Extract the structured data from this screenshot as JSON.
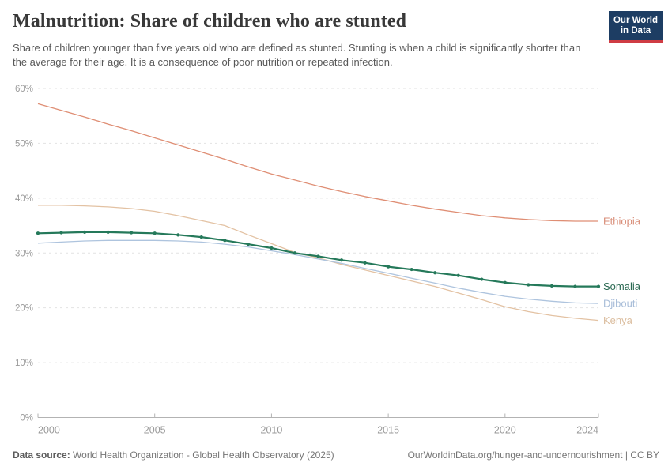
{
  "header": {
    "title": "Malnutrition: Share of children who are stunted",
    "subtitle": "Share of children younger than five years old who are defined as stunted. Stunting is when a child is significantly shorter than the average for their age. It is a consequence of poor nutrition or repeated infection.",
    "logo": {
      "line1": "Our World",
      "line2": "in Data",
      "bg": "#1d3d63",
      "accent": "#cf3c44"
    }
  },
  "chart_data": {
    "type": "line",
    "title": "Malnutrition: Share of children who are stunted",
    "xlabel": "",
    "ylabel": "",
    "ylim": [
      0,
      60
    ],
    "grid": "dashed horizontal",
    "legend_position": "right-end-labels",
    "y_ticks": [
      {
        "value": 0,
        "label": "0%"
      },
      {
        "value": 10,
        "label": "10%"
      },
      {
        "value": 20,
        "label": "20%"
      },
      {
        "value": 30,
        "label": "30%"
      },
      {
        "value": 40,
        "label": "40%"
      },
      {
        "value": 50,
        "label": "50%"
      },
      {
        "value": 60,
        "label": "60%"
      }
    ],
    "x_ticks": [
      2000,
      2005,
      2010,
      2015,
      2020,
      2024
    ],
    "x": [
      2000,
      2001,
      2002,
      2003,
      2004,
      2005,
      2006,
      2007,
      2008,
      2009,
      2010,
      2011,
      2012,
      2013,
      2014,
      2015,
      2016,
      2017,
      2018,
      2019,
      2020,
      2021,
      2022,
      2023,
      2024
    ],
    "series": [
      {
        "name": "Ethiopia",
        "color": "#df8e74",
        "label_color": "#d98e79",
        "markers": false,
        "values": [
          57.2,
          56.0,
          54.8,
          53.5,
          52.3,
          51.0,
          49.7,
          48.4,
          47.1,
          45.7,
          44.4,
          43.3,
          42.2,
          41.2,
          40.3,
          39.5,
          38.7,
          38.0,
          37.4,
          36.8,
          36.4,
          36.1,
          35.9,
          35.8,
          35.8
        ]
      },
      {
        "name": "Kenya",
        "color": "#e3c2a3",
        "label_color": "#dbbd9e",
        "markers": false,
        "values": [
          38.7,
          38.7,
          38.6,
          38.4,
          38.1,
          37.6,
          36.8,
          35.9,
          35.0,
          33.3,
          31.7,
          30.1,
          29.1,
          27.9,
          26.9,
          25.9,
          24.9,
          23.9,
          22.7,
          21.5,
          20.2,
          19.3,
          18.6,
          18.1,
          17.7
        ]
      },
      {
        "name": "Djibouti",
        "color": "#aec4de",
        "label_color": "#a9bed9",
        "markers": false,
        "values": [
          31.8,
          32.0,
          32.2,
          32.3,
          32.3,
          32.3,
          32.2,
          32.0,
          31.6,
          31.1,
          30.4,
          29.7,
          28.9,
          28.1,
          27.2,
          26.3,
          25.4,
          24.5,
          23.6,
          22.8,
          22.1,
          21.6,
          21.2,
          20.9,
          20.8
        ]
      },
      {
        "name": "Somalia",
        "color": "#25795a",
        "label_color": "#2a6952",
        "markers": true,
        "values": [
          33.6,
          33.7,
          33.8,
          33.8,
          33.7,
          33.6,
          33.3,
          32.9,
          32.3,
          31.6,
          30.9,
          30.0,
          29.4,
          28.7,
          28.2,
          27.5,
          27.0,
          26.4,
          25.9,
          25.2,
          24.6,
          24.2,
          24.0,
          23.9,
          23.9
        ]
      }
    ]
  },
  "footer": {
    "source_label": "Data source:",
    "source": "World Health Organization - Global Health Observatory (2025)",
    "url": "OurWorldinData.org/hunger-and-undernourishment",
    "separator": " | ",
    "license": "CC BY"
  }
}
